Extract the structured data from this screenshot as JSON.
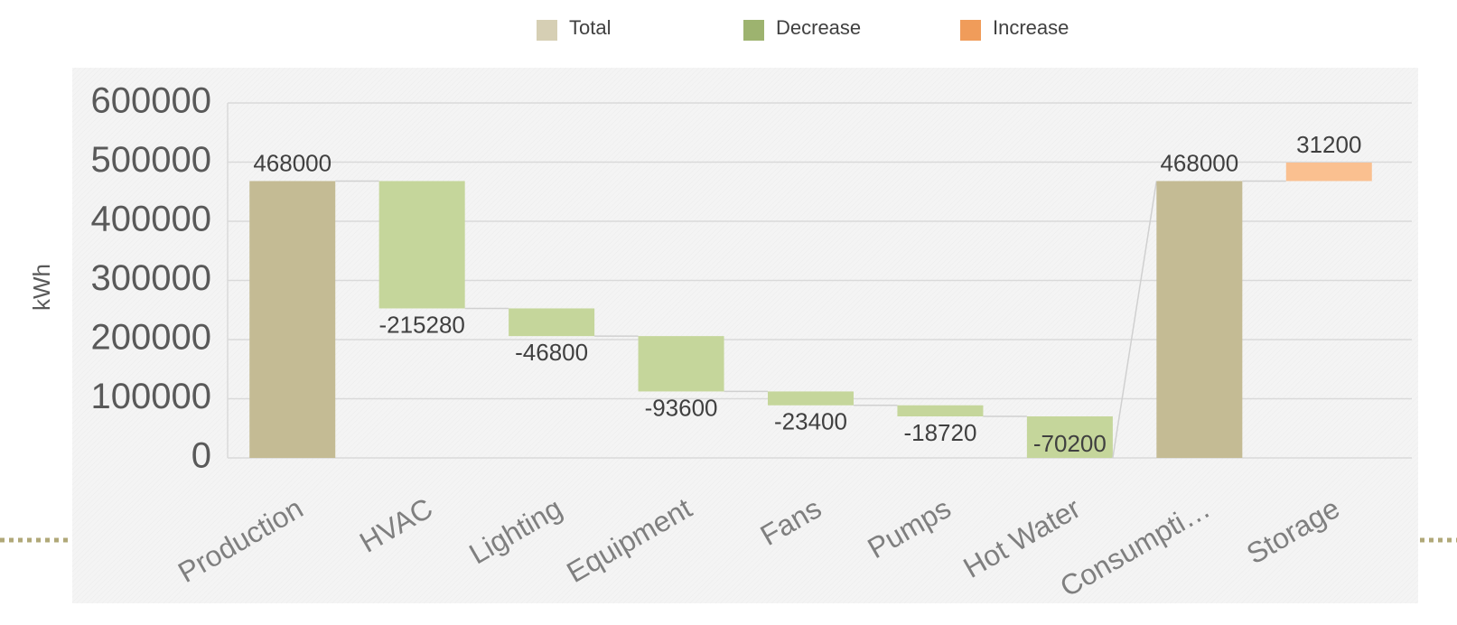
{
  "chart_data": {
    "type": "waterfall",
    "y_label": "kWh",
    "categories": [
      "Production",
      "HVAC",
      "Lighting",
      "Equipment",
      "Fans",
      "Pumps",
      "Hot Water",
      "Consumpti…",
      "Storage"
    ],
    "series": [
      {
        "name": "Total",
        "color": "#c4bb94",
        "legend_color": "#d6cfb4",
        "is_total": true,
        "values": [
          468000,
          null,
          null,
          null,
          null,
          null,
          null,
          468000,
          null
        ]
      },
      {
        "name": "Decrease",
        "color": "#c5d69b",
        "legend_color": "#9db36f",
        "values": [
          null,
          -215280,
          -46800,
          -93600,
          -23400,
          -18720,
          -70200,
          null,
          null
        ]
      },
      {
        "name": "Increase",
        "color": "#fac090",
        "legend_color": "#f09c5a",
        "values": [
          null,
          null,
          null,
          null,
          null,
          null,
          null,
          null,
          31200
        ]
      }
    ],
    "ylim": [
      0,
      600000
    ],
    "yticks": [
      0,
      100000,
      200000,
      300000,
      400000,
      500000,
      600000
    ],
    "grid": true
  }
}
